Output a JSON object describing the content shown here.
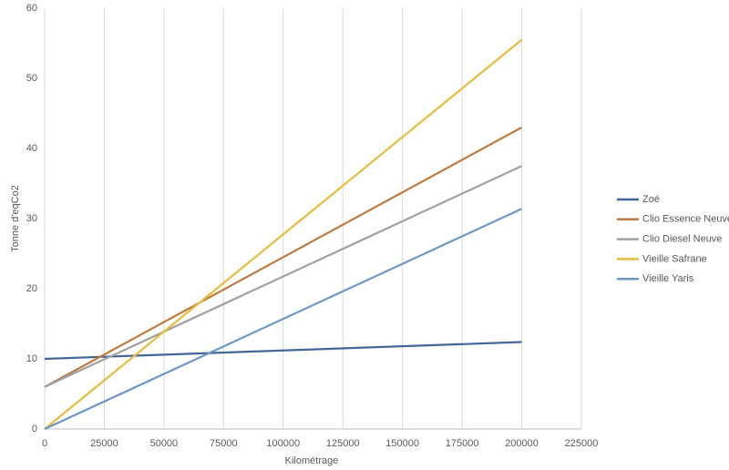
{
  "chart_data": {
    "type": "line",
    "x_label": "Kilométrage",
    "y_label": "Tonne d'eqCo2",
    "x": [
      0,
      200000
    ],
    "series": [
      {
        "name": "Zoé",
        "color": "#44679a",
        "values": [
          10,
          12.4
        ]
      },
      {
        "name": "Clio Essence Neuve",
        "color": "#c07a40",
        "values": [
          6,
          43
        ]
      },
      {
        "name": "Clio Diesel Neuve",
        "color": "#a0a0a0",
        "values": [
          6,
          37.5
        ]
      },
      {
        "name": "Vieille Safrane",
        "color": "#e8bc3c",
        "values": [
          0,
          55.5
        ]
      },
      {
        "name": "Vieille Yaris",
        "color": "#6b98c4",
        "values": [
          0,
          31.4
        ]
      }
    ],
    "xlim": [
      0,
      225000
    ],
    "xticks": [
      0,
      25000,
      50000,
      75000,
      100000,
      125000,
      150000,
      175000,
      200000,
      225000
    ],
    "ylim": [
      0,
      60
    ],
    "yticks": [
      0,
      10,
      20,
      30,
      40,
      50,
      60
    ],
    "grid": "x",
    "legend": "right"
  }
}
